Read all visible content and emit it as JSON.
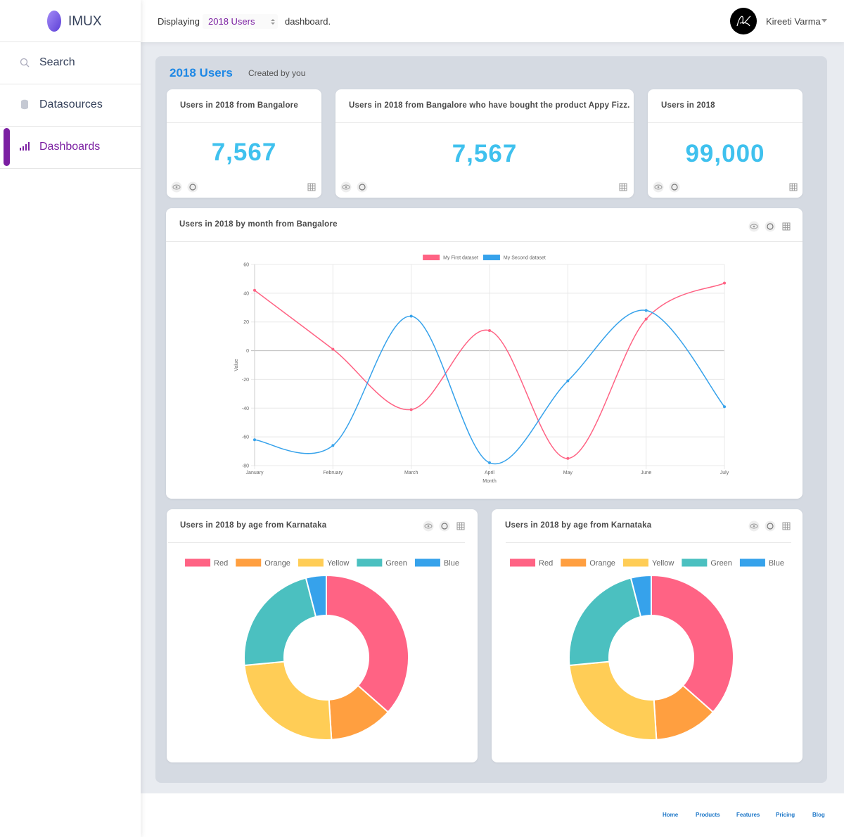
{
  "sidebar": {
    "brand": "IMUX",
    "nav": [
      "Search",
      "Datasources",
      "Dashboards"
    ]
  },
  "header": {
    "prefix": "Displaying",
    "selected": "2018 Users",
    "suffix": "dashboard.",
    "user": "Kireeti Varma"
  },
  "dashboard": {
    "title": "2018 Users",
    "subtitle": "Created by you",
    "stats": [
      {
        "title": "Users in 2018 from Bangalore",
        "value": "7,567"
      },
      {
        "title": "Users in 2018 from Bangalore who have bought the product Appy Fizz.",
        "value": "7,567"
      },
      {
        "title": "Users in 2018",
        "value": "99,000"
      }
    ]
  },
  "chart_data": [
    {
      "type": "line",
      "title": "Users in 2018 by month from Bangalore",
      "categories": [
        "January",
        "February",
        "March",
        "April",
        "May",
        "June",
        "July"
      ],
      "series": [
        {
          "name": "My First dataset",
          "color": "#ff6384",
          "values": [
            42,
            1,
            -41,
            14,
            -75,
            22,
            47
          ]
        },
        {
          "name": "My Second dataset",
          "color": "#36a2eb",
          "values": [
            -62,
            -66,
            24,
            -78,
            -21,
            28,
            -39
          ]
        }
      ],
      "x_label": "Month",
      "y_label": "Value",
      "ylim": [
        -80,
        60
      ],
      "yticks": [
        -80,
        -60,
        -40,
        -20,
        0,
        20,
        40,
        60
      ],
      "grid": true,
      "legend": "top"
    },
    {
      "type": "doughnut",
      "title": "Users in 2018 by age from Karnataka",
      "categories": [
        "Red",
        "Orange",
        "Yellow",
        "Green",
        "Blue"
      ],
      "colors": [
        "#ff6384",
        "#ff9f40",
        "#ffcd56",
        "#4bc0c0",
        "#36a2eb"
      ],
      "values": [
        36.5,
        12.5,
        24.5,
        22.5,
        4
      ],
      "legend": "top"
    },
    {
      "type": "doughnut",
      "title": "Users in 2018 by age from Karnataka",
      "categories": [
        "Red",
        "Orange",
        "Yellow",
        "Green",
        "Blue"
      ],
      "colors": [
        "#ff6384",
        "#ff9f40",
        "#ffcd56",
        "#4bc0c0",
        "#36a2eb"
      ],
      "values": [
        36.5,
        12.5,
        24.5,
        22.5,
        4
      ],
      "legend": "top"
    }
  ],
  "footer": {
    "links": [
      "Home",
      "Products",
      "Features",
      "Pricing",
      "Blog"
    ]
  }
}
